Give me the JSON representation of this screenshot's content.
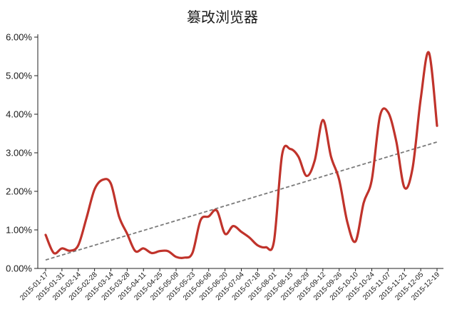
{
  "chart_data": {
    "type": "line",
    "title": "篡改浏览器",
    "xlabel": "",
    "ylabel": "",
    "ylim": [
      0,
      6.0
    ],
    "y_tick_values": [
      0,
      1,
      2,
      3,
      4,
      5,
      6
    ],
    "y_tick_labels": [
      "0.00%",
      "1.00%",
      "2.00%",
      "3.00%",
      "4.00%",
      "5.00%",
      "6.00%"
    ],
    "grid": false,
    "legend": "none",
    "categories": [
      "2015-01-17",
      "2015-01-31",
      "2015-02-14",
      "2015-02-28",
      "2015-03-14",
      "2015-03-28",
      "2015-04-11",
      "2015-04-25",
      "2015-05-09",
      "2015-05-23",
      "2015-06-06",
      "2015-06-20",
      "2015-07-04",
      "2015-07-18",
      "2015-08-01",
      "2015-08-15",
      "2015-08-29",
      "2015-09-12",
      "2015-09-26",
      "2015-10-10",
      "2015-10-24",
      "2015-11-07",
      "2015-11-21",
      "2015-12-05",
      "2015-12-19"
    ],
    "series": [
      {
        "type": "line",
        "color": "#c0332b",
        "x": [
          "2015-01-17",
          "2015-01-24",
          "2015-01-31",
          "2015-02-07",
          "2015-02-14",
          "2015-02-21",
          "2015-02-28",
          "2015-03-07",
          "2015-03-14",
          "2015-03-21",
          "2015-03-28",
          "2015-04-04",
          "2015-04-11",
          "2015-04-18",
          "2015-04-25",
          "2015-05-02",
          "2015-05-09",
          "2015-05-16",
          "2015-05-23",
          "2015-05-30",
          "2015-06-06",
          "2015-06-13",
          "2015-06-20",
          "2015-06-27",
          "2015-07-04",
          "2015-07-11",
          "2015-07-18",
          "2015-07-25",
          "2015-08-01",
          "2015-08-08",
          "2015-08-15",
          "2015-08-22",
          "2015-08-29",
          "2015-09-05",
          "2015-09-12",
          "2015-09-19",
          "2015-09-26",
          "2015-10-03",
          "2015-10-10",
          "2015-10-17",
          "2015-10-24",
          "2015-10-31",
          "2015-11-07",
          "2015-11-14",
          "2015-11-21",
          "2015-11-28",
          "2015-12-05",
          "2015-12-12",
          "2015-12-19"
        ],
        "values": [
          0.87,
          0.4,
          0.52,
          0.46,
          0.6,
          1.3,
          2.05,
          2.3,
          2.2,
          1.35,
          0.9,
          0.45,
          0.52,
          0.4,
          0.45,
          0.45,
          0.3,
          0.28,
          0.4,
          1.25,
          1.35,
          1.5,
          0.9,
          1.1,
          0.95,
          0.8,
          0.6,
          0.55,
          0.7,
          2.95,
          3.1,
          2.9,
          2.4,
          2.8,
          3.85,
          2.9,
          2.3,
          1.2,
          0.7,
          1.7,
          2.3,
          3.95,
          4.05,
          3.3,
          2.1,
          2.6,
          4.4,
          5.6,
          3.7
        ]
      },
      {
        "type": "trendline",
        "color": "#7a7a7a",
        "x": [
          "2015-01-17",
          "2015-12-19"
        ],
        "values": [
          0.22,
          3.28
        ]
      }
    ]
  }
}
